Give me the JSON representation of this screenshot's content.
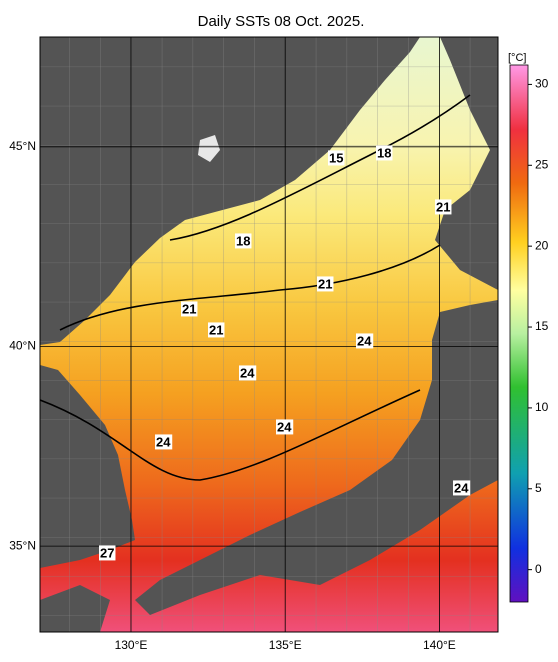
{
  "title": "Daily SSTs 08 Oct. 2025.",
  "map": {
    "xlim": [
      127.05,
      141.9
    ],
    "ylim": [
      32.85,
      47.75
    ],
    "xticks": [
      {
        "value": 130,
        "label": "130°E"
      },
      {
        "value": 135,
        "label": "135°E"
      },
      {
        "value": 140,
        "label": "140°E"
      }
    ],
    "yticks": [
      {
        "value": 35,
        "label": "35°N"
      },
      {
        "value": 40,
        "label": "40°N"
      },
      {
        "value": 45,
        "label": "45°N"
      }
    ],
    "contour_labels": [
      15,
      18,
      18,
      21,
      21,
      21,
      21,
      24,
      24,
      24,
      24,
      24,
      27
    ]
  },
  "colorbar": {
    "unit": "[°C]",
    "range": [
      -2,
      31.2
    ],
    "ticks": [
      0,
      5,
      10,
      15,
      20,
      25,
      30
    ]
  }
}
